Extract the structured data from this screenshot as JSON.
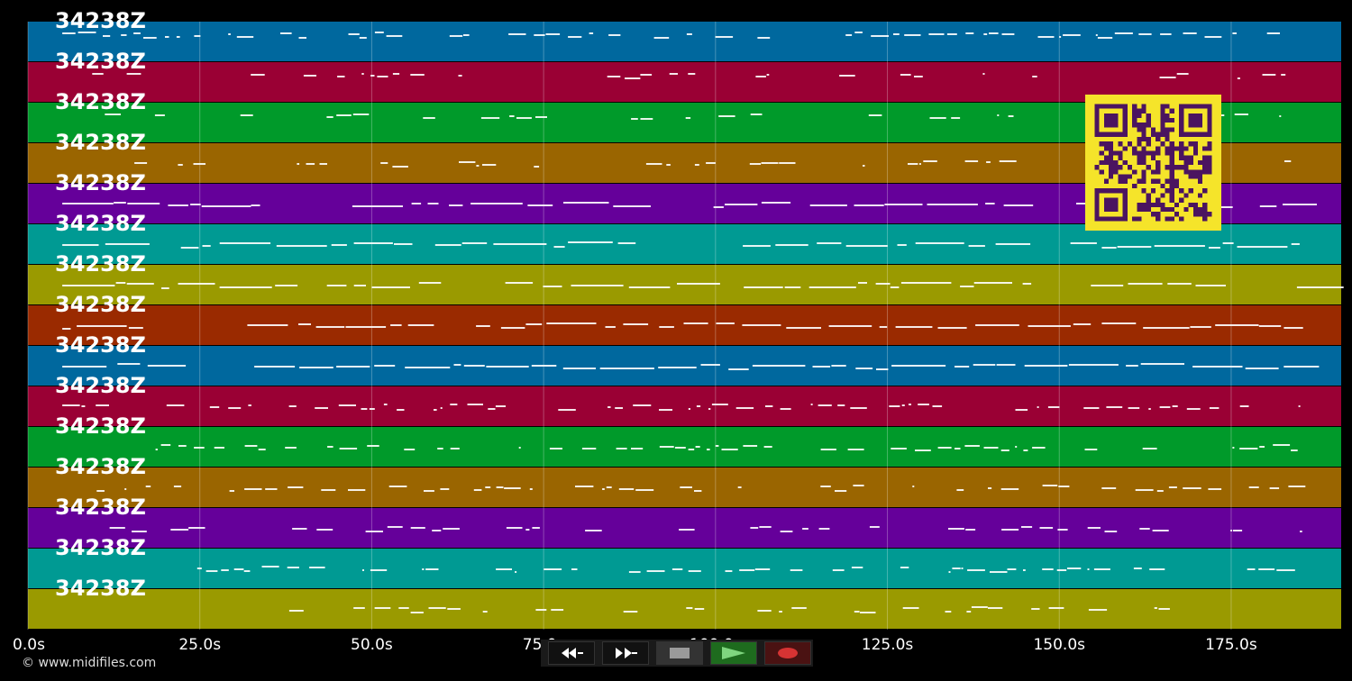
{
  "track_label": "34238Z",
  "tracks": [
    {
      "color": "#00689e",
      "label": "34238Z"
    },
    {
      "color": "#9a0034",
      "label": "34238Z"
    },
    {
      "color": "#009a2a",
      "label": "34238Z"
    },
    {
      "color": "#9a6500",
      "label": "34238Z"
    },
    {
      "color": "#65009a",
      "label": "34238Z"
    },
    {
      "color": "#009a93",
      "label": "34238Z"
    },
    {
      "color": "#9a9a00",
      "label": "34238Z"
    },
    {
      "color": "#9a2a00",
      "label": "34238Z"
    },
    {
      "color": "#00689e",
      "label": "34238Z"
    },
    {
      "color": "#9a0034",
      "label": "34238Z"
    },
    {
      "color": "#009a2a",
      "label": "34238Z"
    },
    {
      "color": "#9a6500",
      "label": "34238Z"
    },
    {
      "color": "#65009a",
      "label": "34238Z"
    },
    {
      "color": "#009a93",
      "label": "34238Z"
    },
    {
      "color": "#9a9a00",
      "label": "34238Z"
    }
  ],
  "time_axis": {
    "ticks": [
      "0.0s",
      "25.0s",
      "50.0s",
      "75.0s",
      "100.0s",
      "125.0s",
      "150.0s",
      "175.0s"
    ],
    "tick_values": [
      0,
      25,
      50,
      75,
      100,
      125,
      150,
      175
    ],
    "max_seconds": 191
  },
  "copyright": "© www.midifiles.com",
  "controls": [
    {
      "name": "rewind-button",
      "icon": "rewind-icon"
    },
    {
      "name": "fast-forward-button",
      "icon": "fast-forward-icon"
    },
    {
      "name": "stop-button",
      "icon": "stop-icon"
    },
    {
      "name": "play-button",
      "icon": "play-icon"
    },
    {
      "name": "record-button",
      "icon": "record-icon"
    }
  ],
  "qr_code": {
    "icon": "qr-code-icon",
    "fg": "#4b1460",
    "bg": "#f5e42a"
  }
}
